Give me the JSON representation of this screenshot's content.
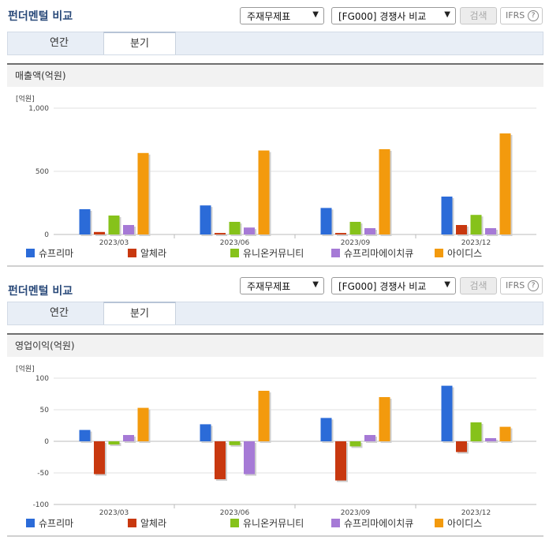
{
  "panels": [
    {
      "title": "펀더멘털 비교",
      "select1": "주재무제표",
      "select2": "[FG000] 경쟁사 비교",
      "search_btn": "검색",
      "ifrs": "IFRS",
      "ifrs_help": "?",
      "tabs": [
        "연간",
        "분기"
      ],
      "active_tab": 1,
      "subheader": "매출액(억원)",
      "unit": "[억원]"
    },
    {
      "title": "펀더멘털 비교",
      "select1": "주재무제표",
      "select2": "[FG000] 경쟁사 비교",
      "search_btn": "검색",
      "ifrs": "IFRS",
      "ifrs_help": "?",
      "tabs": [
        "연간",
        "분기"
      ],
      "active_tab": 1,
      "subheader": "영업이익(억원)",
      "unit": "[억원]"
    }
  ],
  "colors": {
    "슈프리마": "#2b6bd8",
    "알체라": "#c8380f",
    "유니온커뮤니티": "#86c21b",
    "슈프리마에이치큐": "#a67ad6",
    "아이디스": "#f39a0d"
  },
  "chart_data": [
    {
      "type": "bar",
      "title": "매출액(억원)",
      "ylabel": "[억원]",
      "categories": [
        "2023/03",
        "2023/06",
        "2023/09",
        "2023/12"
      ],
      "ylim": [
        0,
        1000
      ],
      "yticks": [
        0,
        500,
        1000
      ],
      "ytick_labels": [
        "0",
        "500",
        "1,000"
      ],
      "series": [
        {
          "name": "슈프리마",
          "values": [
            200,
            230,
            210,
            300
          ]
        },
        {
          "name": "알체라",
          "values": [
            20,
            12,
            12,
            75
          ]
        },
        {
          "name": "유니온커뮤니티",
          "values": [
            150,
            100,
            100,
            155
          ]
        },
        {
          "name": "슈프리마에이치큐",
          "values": [
            75,
            55,
            50,
            50
          ]
        },
        {
          "name": "아이디스",
          "values": [
            645,
            665,
            675,
            800
          ]
        }
      ]
    },
    {
      "type": "bar",
      "title": "영업이익(억원)",
      "ylabel": "[억원]",
      "categories": [
        "2023/03",
        "2023/06",
        "2023/09",
        "2023/12"
      ],
      "ylim": [
        -100,
        100
      ],
      "yticks": [
        -100,
        -50,
        0,
        50,
        100
      ],
      "ytick_labels": [
        "-100",
        "-50",
        "0",
        "50",
        "100"
      ],
      "series": [
        {
          "name": "슈프리마",
          "values": [
            18,
            27,
            37,
            88
          ]
        },
        {
          "name": "알체라",
          "values": [
            -52,
            -60,
            -62,
            -17
          ]
        },
        {
          "name": "유니온커뮤니티",
          "values": [
            -5,
            -6,
            -8,
            30
          ]
        },
        {
          "name": "슈프리마에이치큐",
          "values": [
            10,
            -52,
            10,
            5
          ]
        },
        {
          "name": "아이디스",
          "values": [
            53,
            80,
            70,
            23
          ]
        }
      ]
    }
  ]
}
